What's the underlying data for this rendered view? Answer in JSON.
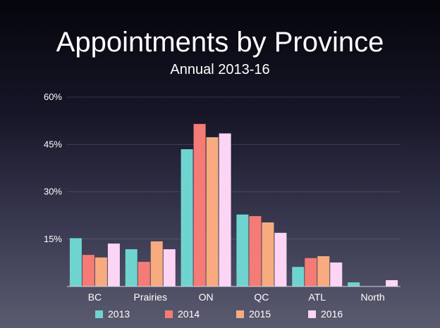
{
  "chart_data": {
    "type": "bar",
    "title": "Appointments by Province",
    "subtitle": "Annual 2013-16",
    "xlabel": "",
    "ylabel": "",
    "ylim": [
      0,
      60
    ],
    "yticks": [
      "15%",
      "30%",
      "45%",
      "60%"
    ],
    "ytick_values": [
      15,
      30,
      45,
      60
    ],
    "grid": true,
    "legend_position": "bottom",
    "categories": [
      "BC",
      "Prairies",
      "ON",
      "QC",
      "ATL",
      "North"
    ],
    "series": [
      {
        "name": "2013",
        "color": "#6fd4d0",
        "values": [
          15.3,
          11.8,
          43.5,
          22.8,
          6.2,
          1.3
        ]
      },
      {
        "name": "2014",
        "color": "#f47b76",
        "values": [
          10.0,
          7.8,
          51.5,
          22.3,
          9.0,
          0
        ]
      },
      {
        "name": "2015",
        "color": "#f7ab7f",
        "values": [
          9.2,
          14.3,
          47.3,
          20.3,
          9.6,
          0
        ]
      },
      {
        "name": "2016",
        "color": "#fcd5f5",
        "values": [
          13.6,
          11.8,
          48.5,
          17.0,
          7.6,
          2.0
        ]
      }
    ]
  }
}
